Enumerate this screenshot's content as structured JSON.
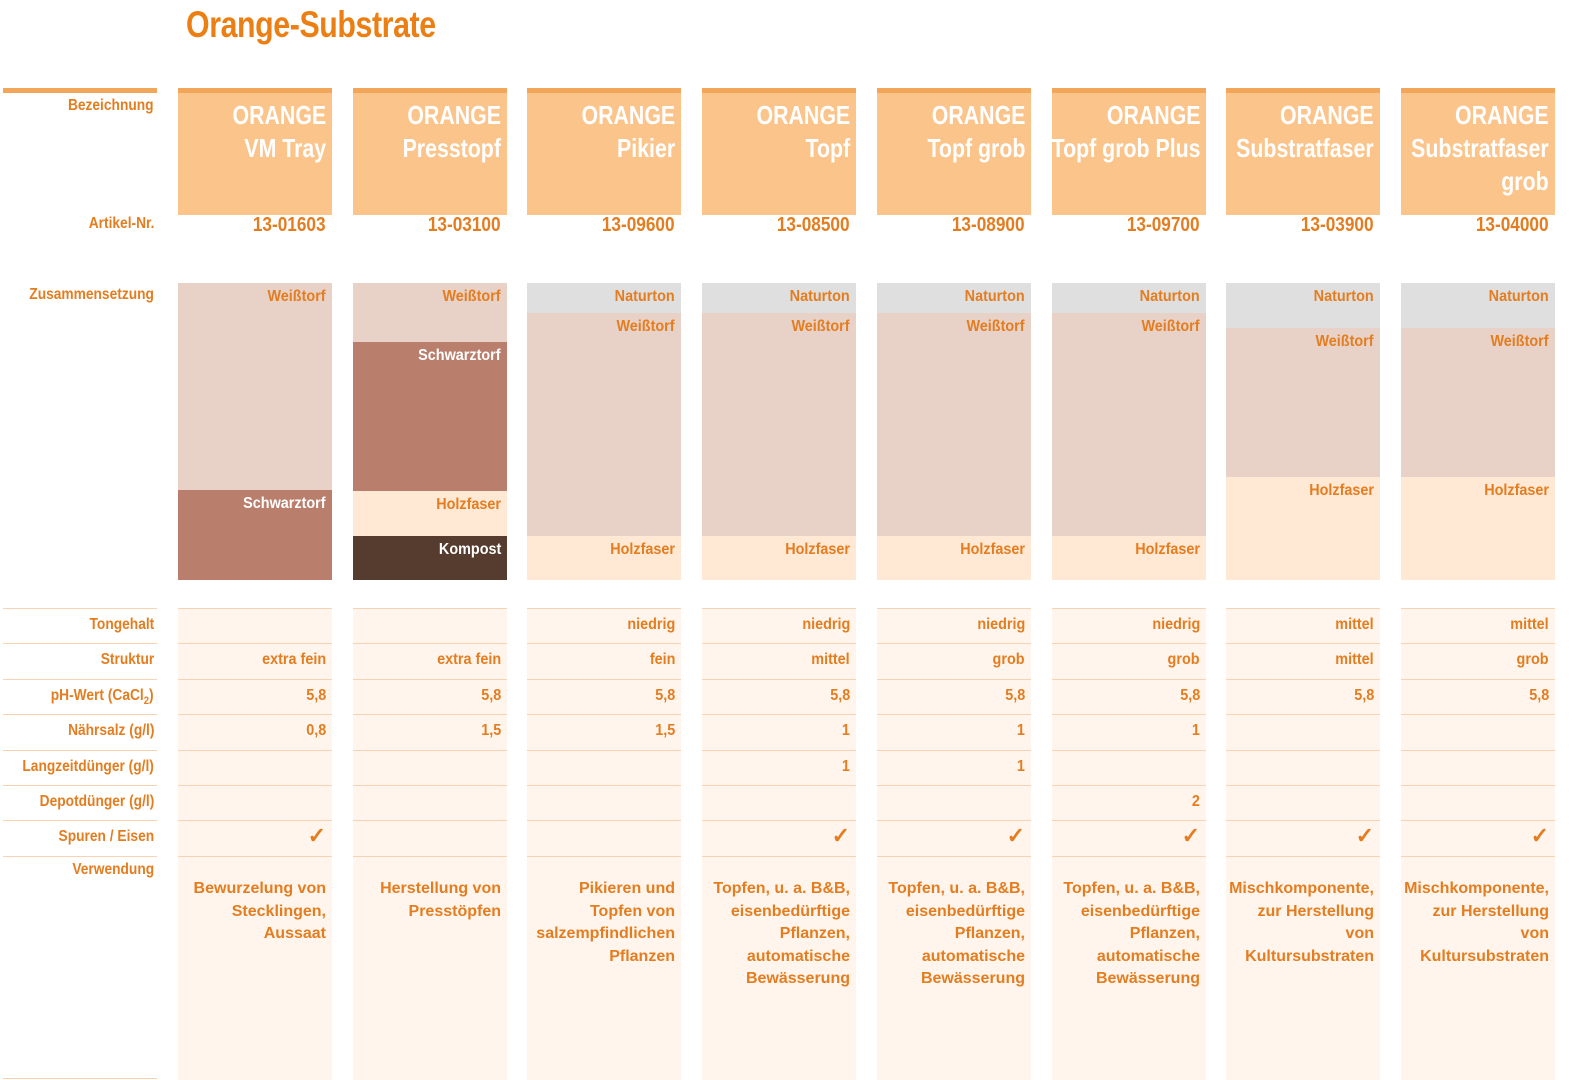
{
  "title": "Orange-Substrate",
  "labels": {
    "name": "Bezeichnung",
    "article": "Artikel-Nr.",
    "composition": "Zusammensetzung",
    "clay": "Tongehalt",
    "structure": "Struktur",
    "ph_prefix": "pH-Wert  (CaCl",
    "ph_sub": "2",
    "ph_suffix": ")",
    "salt": "Nährsalz (g/l)",
    "longterm": "Langzeitdünger (g/l)",
    "depot": "Depotdünger (g/l)",
    "traces": "Spuren / Eisen",
    "usage": "Verwendung"
  },
  "colors": {
    "accent": "#ec7f13",
    "header_fill": "#fbc48b",
    "weisstorf": "#e8d2c7",
    "schwarztorf": "#b97f6c",
    "holzfaser": "#ffe8d4",
    "kompost": "#553c2f",
    "naturton": "#dfdfdf",
    "row_fill": "#fff5ec"
  },
  "products": [
    {
      "name": [
        "ORANGE",
        "VM Tray"
      ],
      "article": "13-01603",
      "composition": [
        {
          "label": "Weißtorf",
          "share": 0.697,
          "kind": "weisstorf"
        },
        {
          "label": "Schwarztorf",
          "share": 0.303,
          "kind": "schwarztorf"
        }
      ],
      "clay": "",
      "structure": "extra fein",
      "ph": "5,8",
      "salt": "0,8",
      "longterm": "",
      "depot": "",
      "traces": true,
      "usage": "Bewurzelung von\nStecklingen,\nAussaat"
    },
    {
      "name": [
        "ORANGE",
        "Presstopf"
      ],
      "article": "13-03100",
      "composition": [
        {
          "label": "Weißtorf",
          "share": 0.2,
          "kind": "weisstorf"
        },
        {
          "label": "Schwarztorf",
          "share": 0.5,
          "kind": "schwarztorf"
        },
        {
          "label": "Holzfaser",
          "share": 0.15,
          "kind": "holzfaser"
        },
        {
          "label": "Kompost",
          "share": 0.15,
          "kind": "kompost"
        }
      ],
      "clay": "",
      "structure": "extra fein",
      "ph": "5,8",
      "salt": "1,5",
      "longterm": "",
      "depot": "",
      "traces": false,
      "usage": "Herstellung von\nPresstöpfen"
    },
    {
      "name": [
        "ORANGE",
        "Pikier"
      ],
      "article": "13-09600",
      "composition": [
        {
          "label": "Naturton",
          "share": 0.1,
          "kind": "naturton"
        },
        {
          "label": "Weißtorf",
          "share": 0.75,
          "kind": "weisstorf"
        },
        {
          "label": "Holzfaser",
          "share": 0.15,
          "kind": "holzfaser"
        }
      ],
      "clay": "niedrig",
      "structure": "fein",
      "ph": "5,8",
      "salt": "1,5",
      "longterm": "",
      "depot": "",
      "traces": false,
      "usage": "Pikieren und\nTopfen von\nsalzempfindlichen\nPflanzen"
    },
    {
      "name": [
        "ORANGE",
        "Topf"
      ],
      "article": "13-08500",
      "composition": [
        {
          "label": "Naturton",
          "share": 0.1,
          "kind": "naturton"
        },
        {
          "label": "Weißtorf",
          "share": 0.75,
          "kind": "weisstorf"
        },
        {
          "label": "Holzfaser",
          "share": 0.15,
          "kind": "holzfaser"
        }
      ],
      "clay": "niedrig",
      "structure": "mittel",
      "ph": "5,8",
      "salt": "1",
      "longterm": "1",
      "depot": "",
      "traces": true,
      "usage": "Topfen, u. a. B&B,\neisenbedürftige\nPflanzen,\nautomatische\nBewässerung"
    },
    {
      "name": [
        "ORANGE",
        "Topf grob"
      ],
      "article": "13-08900",
      "composition": [
        {
          "label": "Naturton",
          "share": 0.1,
          "kind": "naturton"
        },
        {
          "label": "Weißtorf",
          "share": 0.75,
          "kind": "weisstorf"
        },
        {
          "label": "Holzfaser",
          "share": 0.15,
          "kind": "holzfaser"
        }
      ],
      "clay": "niedrig",
      "structure": "grob",
      "ph": "5,8",
      "salt": "1",
      "longterm": "1",
      "depot": "",
      "traces": true,
      "usage": "Topfen, u. a. B&B,\neisenbedürftige\nPflanzen,\nautomatische\nBewässerung"
    },
    {
      "name": [
        "ORANGE",
        "Topf grob Plus"
      ],
      "article": "13-09700",
      "composition": [
        {
          "label": "Naturton",
          "share": 0.1,
          "kind": "naturton"
        },
        {
          "label": "Weißtorf",
          "share": 0.75,
          "kind": "weisstorf"
        },
        {
          "label": "Holzfaser",
          "share": 0.15,
          "kind": "holzfaser"
        }
      ],
      "clay": "niedrig",
      "structure": "grob",
      "ph": "5,8",
      "salt": "1",
      "longterm": "",
      "depot": "2",
      "traces": true,
      "usage": "Topfen, u. a. B&B,\neisenbedürftige\nPflanzen,\nautomatische\nBewässerung"
    },
    {
      "name": [
        "ORANGE",
        "Substratfaser"
      ],
      "article": "13-03900",
      "composition": [
        {
          "label": "Naturton",
          "share": 0.15,
          "kind": "naturton"
        },
        {
          "label": "Weißtorf",
          "share": 0.5,
          "kind": "weisstorf"
        },
        {
          "label": "Holzfaser",
          "share": 0.35,
          "kind": "holzfaser"
        }
      ],
      "clay": "mittel",
      "structure": "mittel",
      "ph": "5,8",
      "salt": "",
      "longterm": "",
      "depot": "",
      "traces": true,
      "usage": "Mischkomponente,\nzur Herstellung\nvon Kultursubstraten"
    },
    {
      "name": [
        "ORANGE",
        "Substratfaser",
        "grob"
      ],
      "article": "13-04000",
      "composition": [
        {
          "label": "Naturton",
          "share": 0.15,
          "kind": "naturton"
        },
        {
          "label": "Weißtorf",
          "share": 0.5,
          "kind": "weisstorf"
        },
        {
          "label": "Holzfaser",
          "share": 0.35,
          "kind": "holzfaser"
        }
      ],
      "clay": "mittel",
      "structure": "grob",
      "ph": "5,8",
      "salt": "",
      "longterm": "",
      "depot": "",
      "traces": true,
      "usage": "Mischkomponente,\nzur Herstellung\nvon Kultursubstraten"
    }
  ]
}
